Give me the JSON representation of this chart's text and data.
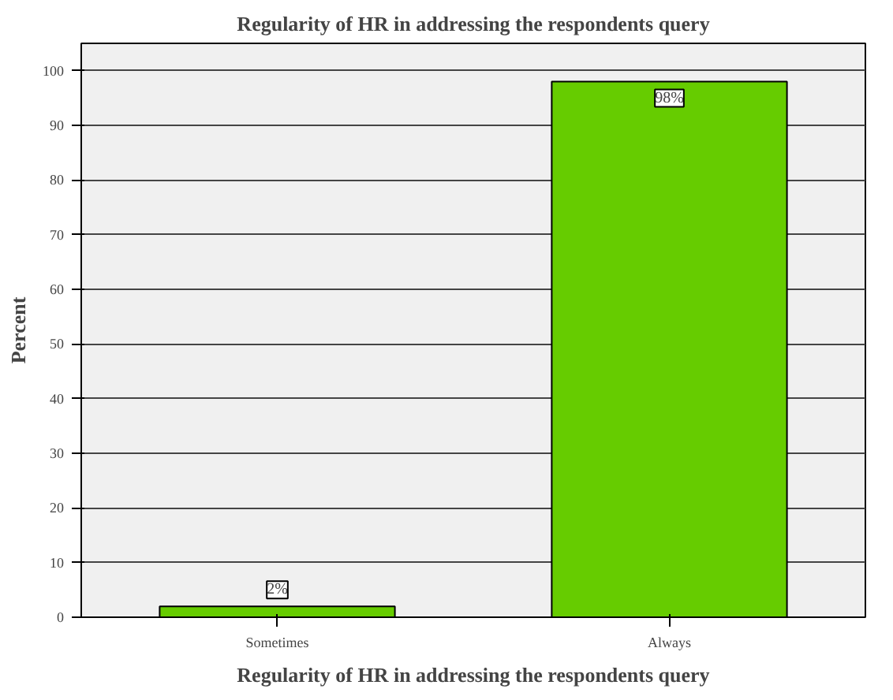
{
  "chart_data": {
    "type": "bar",
    "title": "Regularity of HR in addressing the respondents query",
    "xlabel": "Regularity of HR in addressing the respondents query",
    "ylabel": "Percent",
    "categories": [
      "Sometimes",
      "Always"
    ],
    "values": [
      2,
      98
    ],
    "value_labels": [
      "2%",
      "98%"
    ],
    "color": "#66cc00",
    "ylim": [
      0,
      105
    ],
    "yticks": [
      0,
      10,
      20,
      30,
      40,
      50,
      60,
      70,
      80,
      90,
      100
    ],
    "grid": "y"
  }
}
